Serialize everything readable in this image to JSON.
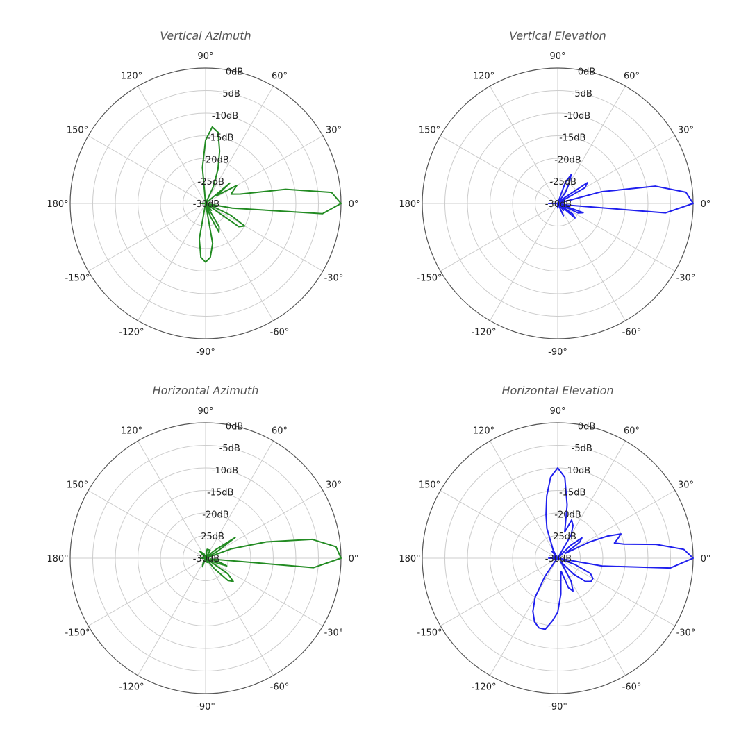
{
  "chart_data": [
    {
      "type": "polar-line",
      "title": "Vertical Azimuth",
      "color": "#228b22",
      "theta_ticks": [
        "0°",
        "30°",
        "60°",
        "90°",
        "120°",
        "150°",
        "180°",
        "-150°",
        "-120°",
        "-90°",
        "-60°",
        "-30°"
      ],
      "r_ticks": [
        "0dB",
        "-5dB",
        "-10dB",
        "-15dB",
        "-20dB",
        "-25dB",
        "-30dB"
      ],
      "r_range_db": [
        -30,
        0
      ],
      "grid": true,
      "series": [
        {
          "angle_deg": [
            0,
            5,
            10,
            15,
            20,
            30,
            35,
            40,
            45,
            50,
            55,
            60,
            65,
            70,
            75,
            80,
            85,
            90,
            95,
            100,
            110,
            130,
            150,
            165,
            180,
            195,
            210,
            230,
            250,
            260,
            265,
            270,
            275,
            280,
            285,
            290,
            295,
            300,
            305,
            310,
            315,
            320,
            325,
            330,
            335,
            340,
            345,
            350,
            355
          ],
          "gain_db": [
            0,
            -2,
            -12,
            -22,
            -24,
            -22,
            -27,
            -23,
            -30,
            -30,
            -30,
            -30,
            -26,
            -22,
            -18,
            -14,
            -13,
            -16,
            -22,
            -30,
            -30,
            -30,
            -30,
            -30,
            -29,
            -30,
            -30,
            -30,
            -30,
            -22,
            -18,
            -17,
            -18,
            -21,
            -30,
            -27,
            -23,
            -24,
            -30,
            -28,
            -30,
            -30,
            -21,
            -20,
            -24,
            -29,
            -30,
            -24,
            -4
          ]
        }
      ]
    },
    {
      "type": "polar-line",
      "title": "Vertical Elevation",
      "color": "#1f1fee",
      "theta_ticks": [
        "0°",
        "30°",
        "60°",
        "90°",
        "120°",
        "150°",
        "180°",
        "-150°",
        "-120°",
        "-90°",
        "-60°",
        "-30°"
      ],
      "r_ticks": [
        "0dB",
        "-5dB",
        "-10dB",
        "-15dB",
        "-20dB",
        "-25dB",
        "-30dB"
      ],
      "r_range_db": [
        -30,
        0
      ],
      "grid": true,
      "series": [
        {
          "angle_deg": [
            0,
            5,
            10,
            15,
            20,
            25,
            30,
            35,
            40,
            45,
            50,
            55,
            60,
            65,
            70,
            75,
            80,
            90,
            100,
            130,
            160,
            180,
            200,
            230,
            260,
            270,
            280,
            290,
            295,
            300,
            305,
            310,
            315,
            320,
            325,
            330,
            335,
            340,
            345,
            350,
            355
          ],
          "gain_db": [
            0,
            -1.5,
            -8,
            -20,
            -30,
            -30,
            -23,
            -22,
            -28,
            -30,
            -30,
            -27,
            -25,
            -23,
            -25,
            -30,
            -30,
            -30,
            -30,
            -30,
            -30,
            -28,
            -30,
            -30,
            -30,
            -29,
            -30,
            -30,
            -27,
            -30,
            -30,
            -28,
            -30,
            -25,
            -26,
            -30,
            -25,
            -24,
            -30,
            -28,
            -6
          ]
        }
      ]
    },
    {
      "type": "polar-line",
      "title": "Horizontal Azimuth",
      "color": "#228b22",
      "theta_ticks": [
        "0°",
        "30°",
        "60°",
        "90°",
        "120°",
        "150°",
        "180°",
        "-150°",
        "-120°",
        "-90°",
        "-60°",
        "-30°"
      ],
      "r_ticks": [
        "0dB",
        "-5dB",
        "-10dB",
        "-15dB",
        "-20dB",
        "-25dB",
        "-30dB"
      ],
      "r_range_db": [
        -30,
        0
      ],
      "grid": true,
      "series": [
        {
          "angle_deg": [
            0,
            5,
            10,
            15,
            20,
            25,
            30,
            35,
            40,
            45,
            50,
            60,
            70,
            80,
            90,
            110,
            130,
            150,
            180,
            210,
            240,
            250,
            260,
            270,
            280,
            290,
            300,
            310,
            315,
            320,
            325,
            330,
            335,
            340,
            345,
            350,
            355
          ],
          "gain_db": [
            0,
            -1,
            -6,
            -16,
            -24,
            -30,
            -27,
            -22,
            -27,
            -29,
            -30,
            -28,
            -28,
            -28,
            -30,
            -29,
            -28,
            -30,
            -29,
            -30,
            -29,
            -28,
            -30,
            -30,
            -30,
            -29,
            -30,
            -27,
            -23,
            -22,
            -24,
            -30,
            -28,
            -25,
            -27,
            -29,
            -6
          ]
        }
      ]
    },
    {
      "type": "polar-line",
      "title": "Horizontal Elevation",
      "color": "#1f1fee",
      "theta_ticks": [
        "0°",
        "30°",
        "60°",
        "90°",
        "120°",
        "150°",
        "180°",
        "-150°",
        "-120°",
        "-90°",
        "-60°",
        "-30°"
      ],
      "r_ticks": [
        "0dB",
        "-5dB",
        "-10dB",
        "-15dB",
        "-20dB",
        "-25dB",
        "-30dB"
      ],
      "r_range_db": [
        -30,
        0
      ],
      "grid": true,
      "series": [
        {
          "angle_deg": [
            0,
            4,
            8,
            12,
            15,
            18,
            21,
            24,
            27,
            30,
            33,
            36,
            40,
            45,
            50,
            55,
            60,
            65,
            70,
            75,
            80,
            85,
            90,
            95,
            100,
            105,
            110,
            115,
            120,
            125,
            130,
            135,
            140,
            150,
            160,
            170,
            180,
            190,
            200,
            210,
            220,
            230,
            235,
            240,
            245,
            250,
            255,
            260,
            265,
            270,
            275,
            280,
            285,
            290,
            295,
            300,
            305,
            310,
            315,
            320,
            325,
            330,
            335,
            340,
            345,
            350,
            355
          ],
          "gain_db": [
            0,
            -2,
            -8,
            -15,
            -17,
            -16,
            -15,
            -18,
            -22,
            -27,
            -28,
            -24,
            -23,
            -26,
            -30,
            -30,
            -24,
            -22,
            -21,
            -24,
            -18,
            -12,
            -10,
            -12,
            -16,
            -20,
            -23,
            -27,
            -28,
            -30,
            -28,
            -30,
            -30,
            -29,
            -30,
            -29,
            -28,
            -30,
            -29,
            -30,
            -30,
            -29,
            -25,
            -20,
            -17,
            -15,
            -14,
            -14,
            -16,
            -18,
            -22,
            -26,
            -27,
            -23,
            -22,
            -24,
            -28,
            -29,
            -25,
            -22,
            -21,
            -21,
            -22,
            -26,
            -30,
            -20,
            -5
          ]
        }
      ]
    }
  ]
}
